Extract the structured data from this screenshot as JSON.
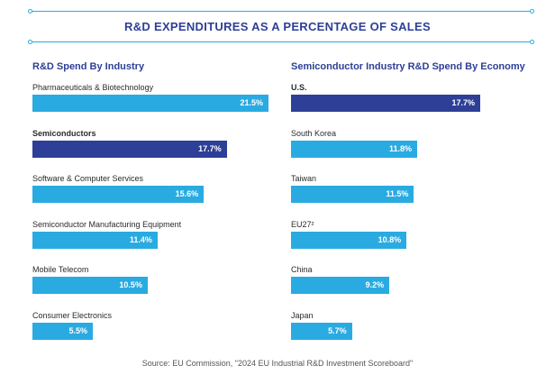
{
  "title": "R&D EXPENDITURES AS A PERCENTAGE OF SALES",
  "colors": {
    "highlight": "#2d3f96",
    "default": "#29abe2",
    "rule": "#29abe2"
  },
  "source": "Source: EU Commission, \"2024 EU Industrial R&D Investment Scoreboard\"",
  "chart_data": [
    {
      "type": "bar",
      "orientation": "horizontal",
      "title": "R&D Spend By Industry",
      "categories": [
        "Pharmaceuticals & Biotechnology",
        "Semiconductors",
        "Software & Computer Services",
        "Semiconductor Manufacturing Equipment",
        "Mobile Telecom",
        "Consumer Electronics"
      ],
      "values": [
        21.5,
        17.7,
        15.6,
        11.4,
        10.5,
        5.5
      ],
      "labels": [
        "21.5%",
        "17.7%",
        "15.6%",
        "11.4%",
        "10.5%",
        "5.5%"
      ],
      "highlight": [
        false,
        true,
        false,
        false,
        false,
        false
      ],
      "xlim": [
        0,
        21.5
      ]
    },
    {
      "type": "bar",
      "orientation": "horizontal",
      "title": "Semiconductor Industry R&D Spend By Economy",
      "categories": [
        "U.S.",
        "South Korea",
        "Taiwan",
        "EU27²",
        "China",
        "Japan"
      ],
      "values": [
        17.7,
        11.8,
        11.5,
        10.8,
        9.2,
        5.7
      ],
      "labels": [
        "17.7%",
        "11.8%",
        "11.5%",
        "10.8%",
        "9.2%",
        "5.7%"
      ],
      "highlight": [
        true,
        false,
        false,
        false,
        false,
        false
      ],
      "xlim": [
        0,
        17.7
      ]
    }
  ]
}
